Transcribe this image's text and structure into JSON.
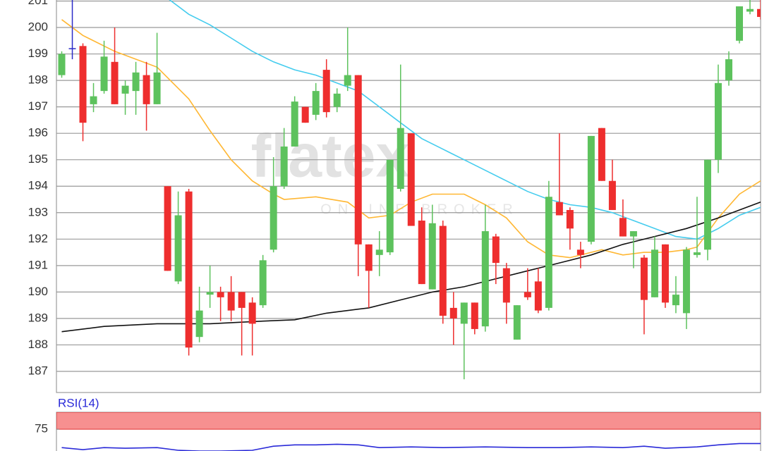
{
  "chart_data": [
    {
      "type": "candlestick",
      "watermark": "flatex",
      "watermark_sub": "ONLINE BROKER",
      "open": [
        198.2,
        199.2,
        199.3,
        197.1,
        197.6,
        198.7,
        197.5,
        197.6,
        198.2,
        197.1,
        194.0,
        190.4,
        193.8,
        188.3,
        189.9,
        190.0,
        190.0,
        190.0,
        189.6,
        189.5,
        191.6,
        194.0,
        195.5,
        197.0,
        196.7,
        198.4,
        197.0,
        197.8,
        198.2,
        191.8,
        191.4,
        191.5,
        193.9,
        196.0,
        192.7,
        190.1,
        192.5,
        189.4,
        188.8,
        189.6,
        188.7,
        192.1,
        190.9,
        188.2,
        190.0,
        190.4,
        189.4,
        193.4,
        193.1,
        191.6,
        191.9,
        196.2,
        194.2,
        192.8,
        192.1,
        191.3,
        189.8,
        191.8,
        189.5,
        189.2,
        191.4,
        191.6,
        195.0,
        198.0,
        199.5,
        200.6,
        200.7
      ],
      "high": [
        199.1,
        201.2,
        199.4,
        197.9,
        199.5,
        200.0,
        198.0,
        198.7,
        198.7,
        199.8,
        194.0,
        193.8,
        193.9,
        190.2,
        191.0,
        190.2,
        190.6,
        190.0,
        189.8,
        191.4,
        195.1,
        196.2,
        197.4,
        197.0,
        197.9,
        198.8,
        197.7,
        200.0,
        198.2,
        191.8,
        192.3,
        195.0,
        198.6,
        196.0,
        193.2,
        193.3,
        192.7,
        190.0,
        189.6,
        189.6,
        193.3,
        192.2,
        191.1,
        189.5,
        190.9,
        190.9,
        194.2,
        196.0,
        193.2,
        191.9,
        195.9,
        196.2,
        195.0,
        193.5,
        192.3,
        191.4,
        192.1,
        191.8,
        190.6,
        191.7,
        193.6,
        195.0,
        198.6,
        199.1,
        200.8,
        201.1,
        201.1
      ],
      "low": [
        198.1,
        198.8,
        195.7,
        196.8,
        197.5,
        197.1,
        196.7,
        196.7,
        196.1,
        197.1,
        190.8,
        190.3,
        187.6,
        188.1,
        189.4,
        188.9,
        188.9,
        187.6,
        187.6,
        189.4,
        191.5,
        193.9,
        195.5,
        196.4,
        196.5,
        196.6,
        196.8,
        197.6,
        190.6,
        189.4,
        190.6,
        191.4,
        193.8,
        192.5,
        190.3,
        190.1,
        188.8,
        188.0,
        186.7,
        188.4,
        188.5,
        190.3,
        188.8,
        188.2,
        189.7,
        189.2,
        189.3,
        192.9,
        191.6,
        190.9,
        191.8,
        194.2,
        193.1,
        192.1,
        190.9,
        188.4,
        189.8,
        189.4,
        189.2,
        188.6,
        191.3,
        191.2,
        194.5,
        197.8,
        199.4,
        200.5,
        200.3
      ],
      "close": [
        199.0,
        199.2,
        196.4,
        197.4,
        198.9,
        197.1,
        197.8,
        198.3,
        197.1,
        198.3,
        190.8,
        192.9,
        187.9,
        189.3,
        190.0,
        189.8,
        189.3,
        189.4,
        188.8,
        191.2,
        194.0,
        195.5,
        197.2,
        196.4,
        197.6,
        196.8,
        197.5,
        198.2,
        191.8,
        190.8,
        191.6,
        195.0,
        196.2,
        192.5,
        190.3,
        192.6,
        189.1,
        189.0,
        189.6,
        188.6,
        192.3,
        191.1,
        189.6,
        189.5,
        189.8,
        189.3,
        193.6,
        192.9,
        192.4,
        191.4,
        195.9,
        194.2,
        193.1,
        192.1,
        192.3,
        189.7,
        191.6,
        189.6,
        189.9,
        191.6,
        191.5,
        195.0,
        197.9,
        198.8,
        200.8,
        200.7,
        200.4
      ],
      "up_color": "#5dc25d",
      "down_color": "#ee2e2e",
      "flat_color": "#2b2bc8",
      "lines": [
        {
          "color": "#ffb733",
          "x": [
            0,
            2,
            5,
            9,
            12,
            14,
            16,
            18,
            20,
            21,
            24,
            27,
            29,
            31,
            33,
            35,
            38,
            40,
            42,
            44,
            46,
            48,
            51,
            53,
            55,
            57,
            59,
            60,
            62,
            64,
            66
          ],
          "values": [
            200.3,
            199.7,
            199.1,
            198.5,
            197.3,
            196.1,
            195.0,
            194.2,
            193.7,
            193.5,
            193.6,
            193.4,
            192.8,
            192.9,
            193.4,
            193.7,
            193.7,
            193.3,
            192.8,
            191.9,
            191.4,
            191.3,
            191.6,
            191.4,
            191.5,
            191.5,
            191.6,
            191.7,
            192.8,
            193.7,
            194.2
          ]
        },
        {
          "color": "#44ccee",
          "x": [
            10,
            12,
            14,
            16,
            18,
            20,
            22,
            24,
            26,
            28,
            30,
            32,
            34,
            36,
            38,
            40,
            42,
            44,
            46,
            48,
            50,
            52,
            54,
            56,
            58,
            60,
            62,
            64,
            66
          ],
          "values": [
            201.1,
            200.5,
            200.1,
            199.6,
            199.1,
            198.7,
            198.4,
            198.2,
            197.9,
            197.6,
            197.0,
            196.4,
            195.8,
            195.4,
            195.0,
            194.6,
            194.2,
            193.8,
            193.5,
            193.3,
            193.2,
            193.0,
            192.7,
            192.4,
            192.1,
            192.0,
            192.4,
            192.9,
            193.2
          ]
        },
        {
          "color": "#111111",
          "x": [
            0,
            4,
            9,
            14,
            19,
            22,
            25,
            29,
            32,
            35,
            38,
            41,
            44,
            47,
            50,
            53,
            56,
            59,
            62,
            66
          ],
          "values": [
            188.5,
            188.7,
            188.8,
            188.8,
            188.9,
            188.95,
            189.2,
            189.4,
            189.7,
            190.0,
            190.2,
            190.5,
            190.8,
            191.1,
            191.4,
            191.8,
            192.1,
            192.4,
            192.8,
            193.4
          ]
        }
      ],
      "xlim": [
        -0.5,
        66.0
      ],
      "ylim": [
        186.2,
        201.04
      ],
      "yticks": [
        187,
        188,
        189,
        190,
        191,
        192,
        193,
        194,
        195,
        196,
        197,
        198,
        199,
        200,
        201
      ],
      "grid": true
    },
    {
      "type": "line",
      "title": "RSI(14)",
      "color": "#2a2ad8",
      "band": [
        75,
        100
      ],
      "band_color": "#f79090",
      "x": [
        0,
        2,
        4,
        6,
        9,
        11,
        13,
        15,
        18,
        20,
        22,
        24,
        26,
        28,
        30,
        33,
        36,
        40,
        44,
        47,
        50,
        53,
        55,
        57,
        60,
        62,
        64,
        66
      ],
      "values": [
        48,
        45,
        48,
        47,
        48,
        44,
        43,
        43,
        44,
        50,
        52,
        52,
        53,
        52,
        48,
        49,
        48,
        49,
        48,
        48,
        49,
        48,
        50,
        47,
        49,
        52,
        54,
        54
      ],
      "xlim": [
        -0.5,
        66.0
      ],
      "ylim": [
        43,
        100
      ],
      "yticks": [
        75
      ]
    }
  ]
}
